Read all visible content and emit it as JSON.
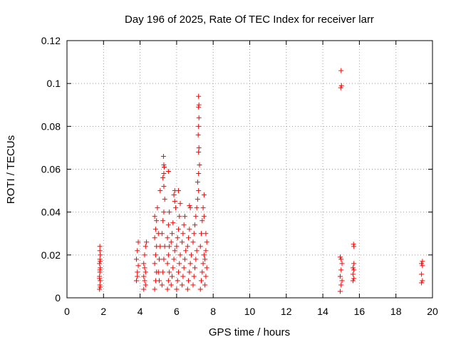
{
  "chart_data": {
    "type": "scatter",
    "title": "Day 196 of 2025, Rate Of TEC Index for receiver larr",
    "xlabel": "GPS time / hours",
    "ylabel": "ROTI / TECUs",
    "xlim": [
      0,
      20
    ],
    "ylim": [
      0,
      0.12
    ],
    "xticks": [
      "0",
      "2",
      "4",
      "6",
      "8",
      "10",
      "12",
      "14",
      "16",
      "18",
      "20"
    ],
    "yticks": [
      "0",
      "0.02",
      "0.04",
      "0.06",
      "0.08",
      "0.1",
      "0.12"
    ],
    "grid": true,
    "marker": "plus",
    "color": "#ff0000",
    "points": [
      [
        1.78,
        0.004
      ],
      [
        1.8,
        0.006
      ],
      [
        1.82,
        0.008
      ],
      [
        1.78,
        0.01
      ],
      [
        1.8,
        0.012
      ],
      [
        1.82,
        0.014
      ],
      [
        1.78,
        0.016
      ],
      [
        1.8,
        0.018
      ],
      [
        1.82,
        0.02
      ],
      [
        1.8,
        0.022
      ],
      [
        1.8,
        0.024
      ],
      [
        1.82,
        0.005
      ],
      [
        1.78,
        0.009
      ],
      [
        1.8,
        0.013
      ],
      [
        1.82,
        0.017
      ],
      [
        3.8,
        0.008
      ],
      [
        3.85,
        0.012
      ],
      [
        3.9,
        0.015
      ],
      [
        3.8,
        0.018
      ],
      [
        3.85,
        0.022
      ],
      [
        3.9,
        0.026
      ],
      [
        3.85,
        0.01
      ],
      [
        4.2,
        0.004
      ],
      [
        4.25,
        0.008
      ],
      [
        4.3,
        0.012
      ],
      [
        4.2,
        0.016
      ],
      [
        4.25,
        0.02
      ],
      [
        4.3,
        0.024
      ],
      [
        4.35,
        0.026
      ],
      [
        4.2,
        0.01
      ],
      [
        4.3,
        0.006
      ],
      [
        4.25,
        0.014
      ],
      [
        4.8,
        0.004
      ],
      [
        4.85,
        0.008
      ],
      [
        4.9,
        0.012
      ],
      [
        4.8,
        0.016
      ],
      [
        4.85,
        0.02
      ],
      [
        4.9,
        0.024
      ],
      [
        4.8,
        0.028
      ],
      [
        4.85,
        0.032
      ],
      [
        4.9,
        0.036
      ],
      [
        4.8,
        0.038
      ],
      [
        4.95,
        0.042
      ],
      [
        5.0,
        0.012
      ],
      [
        5.05,
        0.018
      ],
      [
        5.1,
        0.024
      ],
      [
        5.0,
        0.03
      ],
      [
        5.1,
        0.05
      ],
      [
        5.05,
        0.008
      ],
      [
        5.2,
        0.006
      ],
      [
        5.25,
        0.012
      ],
      [
        5.3,
        0.018
      ],
      [
        5.35,
        0.024
      ],
      [
        5.2,
        0.03
      ],
      [
        5.25,
        0.036
      ],
      [
        5.3,
        0.04
      ],
      [
        5.35,
        0.046
      ],
      [
        5.3,
        0.052
      ],
      [
        5.3,
        0.058
      ],
      [
        5.32,
        0.061
      ],
      [
        5.3,
        0.062
      ],
      [
        5.28,
        0.066
      ],
      [
        5.25,
        0.056
      ],
      [
        5.5,
        0.004
      ],
      [
        5.55,
        0.008
      ],
      [
        5.6,
        0.012
      ],
      [
        5.5,
        0.016
      ],
      [
        5.55,
        0.02
      ],
      [
        5.6,
        0.024
      ],
      [
        5.5,
        0.028
      ],
      [
        5.55,
        0.034
      ],
      [
        5.6,
        0.04
      ],
      [
        5.55,
        0.059
      ],
      [
        5.7,
        0.006
      ],
      [
        5.75,
        0.01
      ],
      [
        5.8,
        0.014
      ],
      [
        5.85,
        0.018
      ],
      [
        5.9,
        0.022
      ],
      [
        5.7,
        0.026
      ],
      [
        5.75,
        0.03
      ],
      [
        5.8,
        0.035
      ],
      [
        5.9,
        0.045
      ],
      [
        5.85,
        0.048
      ],
      [
        5.9,
        0.05
      ],
      [
        5.95,
        0.042
      ],
      [
        6.0,
        0.004
      ],
      [
        6.05,
        0.008
      ],
      [
        6.1,
        0.012
      ],
      [
        6.15,
        0.016
      ],
      [
        6.2,
        0.02
      ],
      [
        6.0,
        0.024
      ],
      [
        6.05,
        0.028
      ],
      [
        6.1,
        0.032
      ],
      [
        6.15,
        0.038
      ],
      [
        6.2,
        0.044
      ],
      [
        6.1,
        0.05
      ],
      [
        6.3,
        0.006
      ],
      [
        6.35,
        0.01
      ],
      [
        6.4,
        0.014
      ],
      [
        6.45,
        0.018
      ],
      [
        6.5,
        0.022
      ],
      [
        6.3,
        0.026
      ],
      [
        6.35,
        0.03
      ],
      [
        6.4,
        0.034
      ],
      [
        6.45,
        0.038
      ],
      [
        6.6,
        0.004
      ],
      [
        6.65,
        0.008
      ],
      [
        6.7,
        0.012
      ],
      [
        6.75,
        0.016
      ],
      [
        6.8,
        0.02
      ],
      [
        6.6,
        0.024
      ],
      [
        6.65,
        0.028
      ],
      [
        6.7,
        0.032
      ],
      [
        6.75,
        0.042
      ],
      [
        6.7,
        0.043
      ],
      [
        6.9,
        0.006
      ],
      [
        6.95,
        0.01
      ],
      [
        7.0,
        0.014
      ],
      [
        7.05,
        0.018
      ],
      [
        7.1,
        0.022
      ],
      [
        6.9,
        0.026
      ],
      [
        6.95,
        0.03
      ],
      [
        7.0,
        0.034
      ],
      [
        7.05,
        0.038
      ],
      [
        7.1,
        0.042
      ],
      [
        7.15,
        0.046
      ],
      [
        7.2,
        0.05
      ],
      [
        7.15,
        0.054
      ],
      [
        7.2,
        0.058
      ],
      [
        7.25,
        0.062
      ],
      [
        7.2,
        0.068
      ],
      [
        7.22,
        0.07
      ],
      [
        7.18,
        0.076
      ],
      [
        7.2,
        0.08
      ],
      [
        7.22,
        0.084
      ],
      [
        7.2,
        0.089
      ],
      [
        7.22,
        0.09
      ],
      [
        7.2,
        0.094
      ],
      [
        7.3,
        0.004
      ],
      [
        7.35,
        0.008
      ],
      [
        7.4,
        0.012
      ],
      [
        7.45,
        0.016
      ],
      [
        7.5,
        0.02
      ],
      [
        7.3,
        0.024
      ],
      [
        7.35,
        0.03
      ],
      [
        7.4,
        0.036
      ],
      [
        7.45,
        0.042
      ],
      [
        7.5,
        0.048
      ],
      [
        7.55,
        0.006
      ],
      [
        7.6,
        0.01
      ],
      [
        7.65,
        0.014
      ],
      [
        7.55,
        0.018
      ],
      [
        7.6,
        0.022
      ],
      [
        7.65,
        0.026
      ],
      [
        7.6,
        0.03
      ],
      [
        7.5,
        0.038
      ],
      [
        14.95,
        0.003
      ],
      [
        15.0,
        0.006
      ],
      [
        15.05,
        0.008
      ],
      [
        14.95,
        0.01
      ],
      [
        15.0,
        0.013
      ],
      [
        15.05,
        0.016
      ],
      [
        15.0,
        0.018
      ],
      [
        14.95,
        0.019
      ],
      [
        14.98,
        0.098
      ],
      [
        15.02,
        0.099
      ],
      [
        15.0,
        0.106
      ],
      [
        15.65,
        0.008
      ],
      [
        15.7,
        0.009
      ],
      [
        15.65,
        0.011
      ],
      [
        15.7,
        0.013
      ],
      [
        15.65,
        0.014
      ],
      [
        15.7,
        0.016
      ],
      [
        15.7,
        0.024
      ],
      [
        15.68,
        0.025
      ],
      [
        19.4,
        0.007
      ],
      [
        19.45,
        0.008
      ],
      [
        19.4,
        0.011
      ],
      [
        19.45,
        0.015
      ],
      [
        19.4,
        0.016
      ],
      [
        19.45,
        0.017
      ]
    ]
  }
}
